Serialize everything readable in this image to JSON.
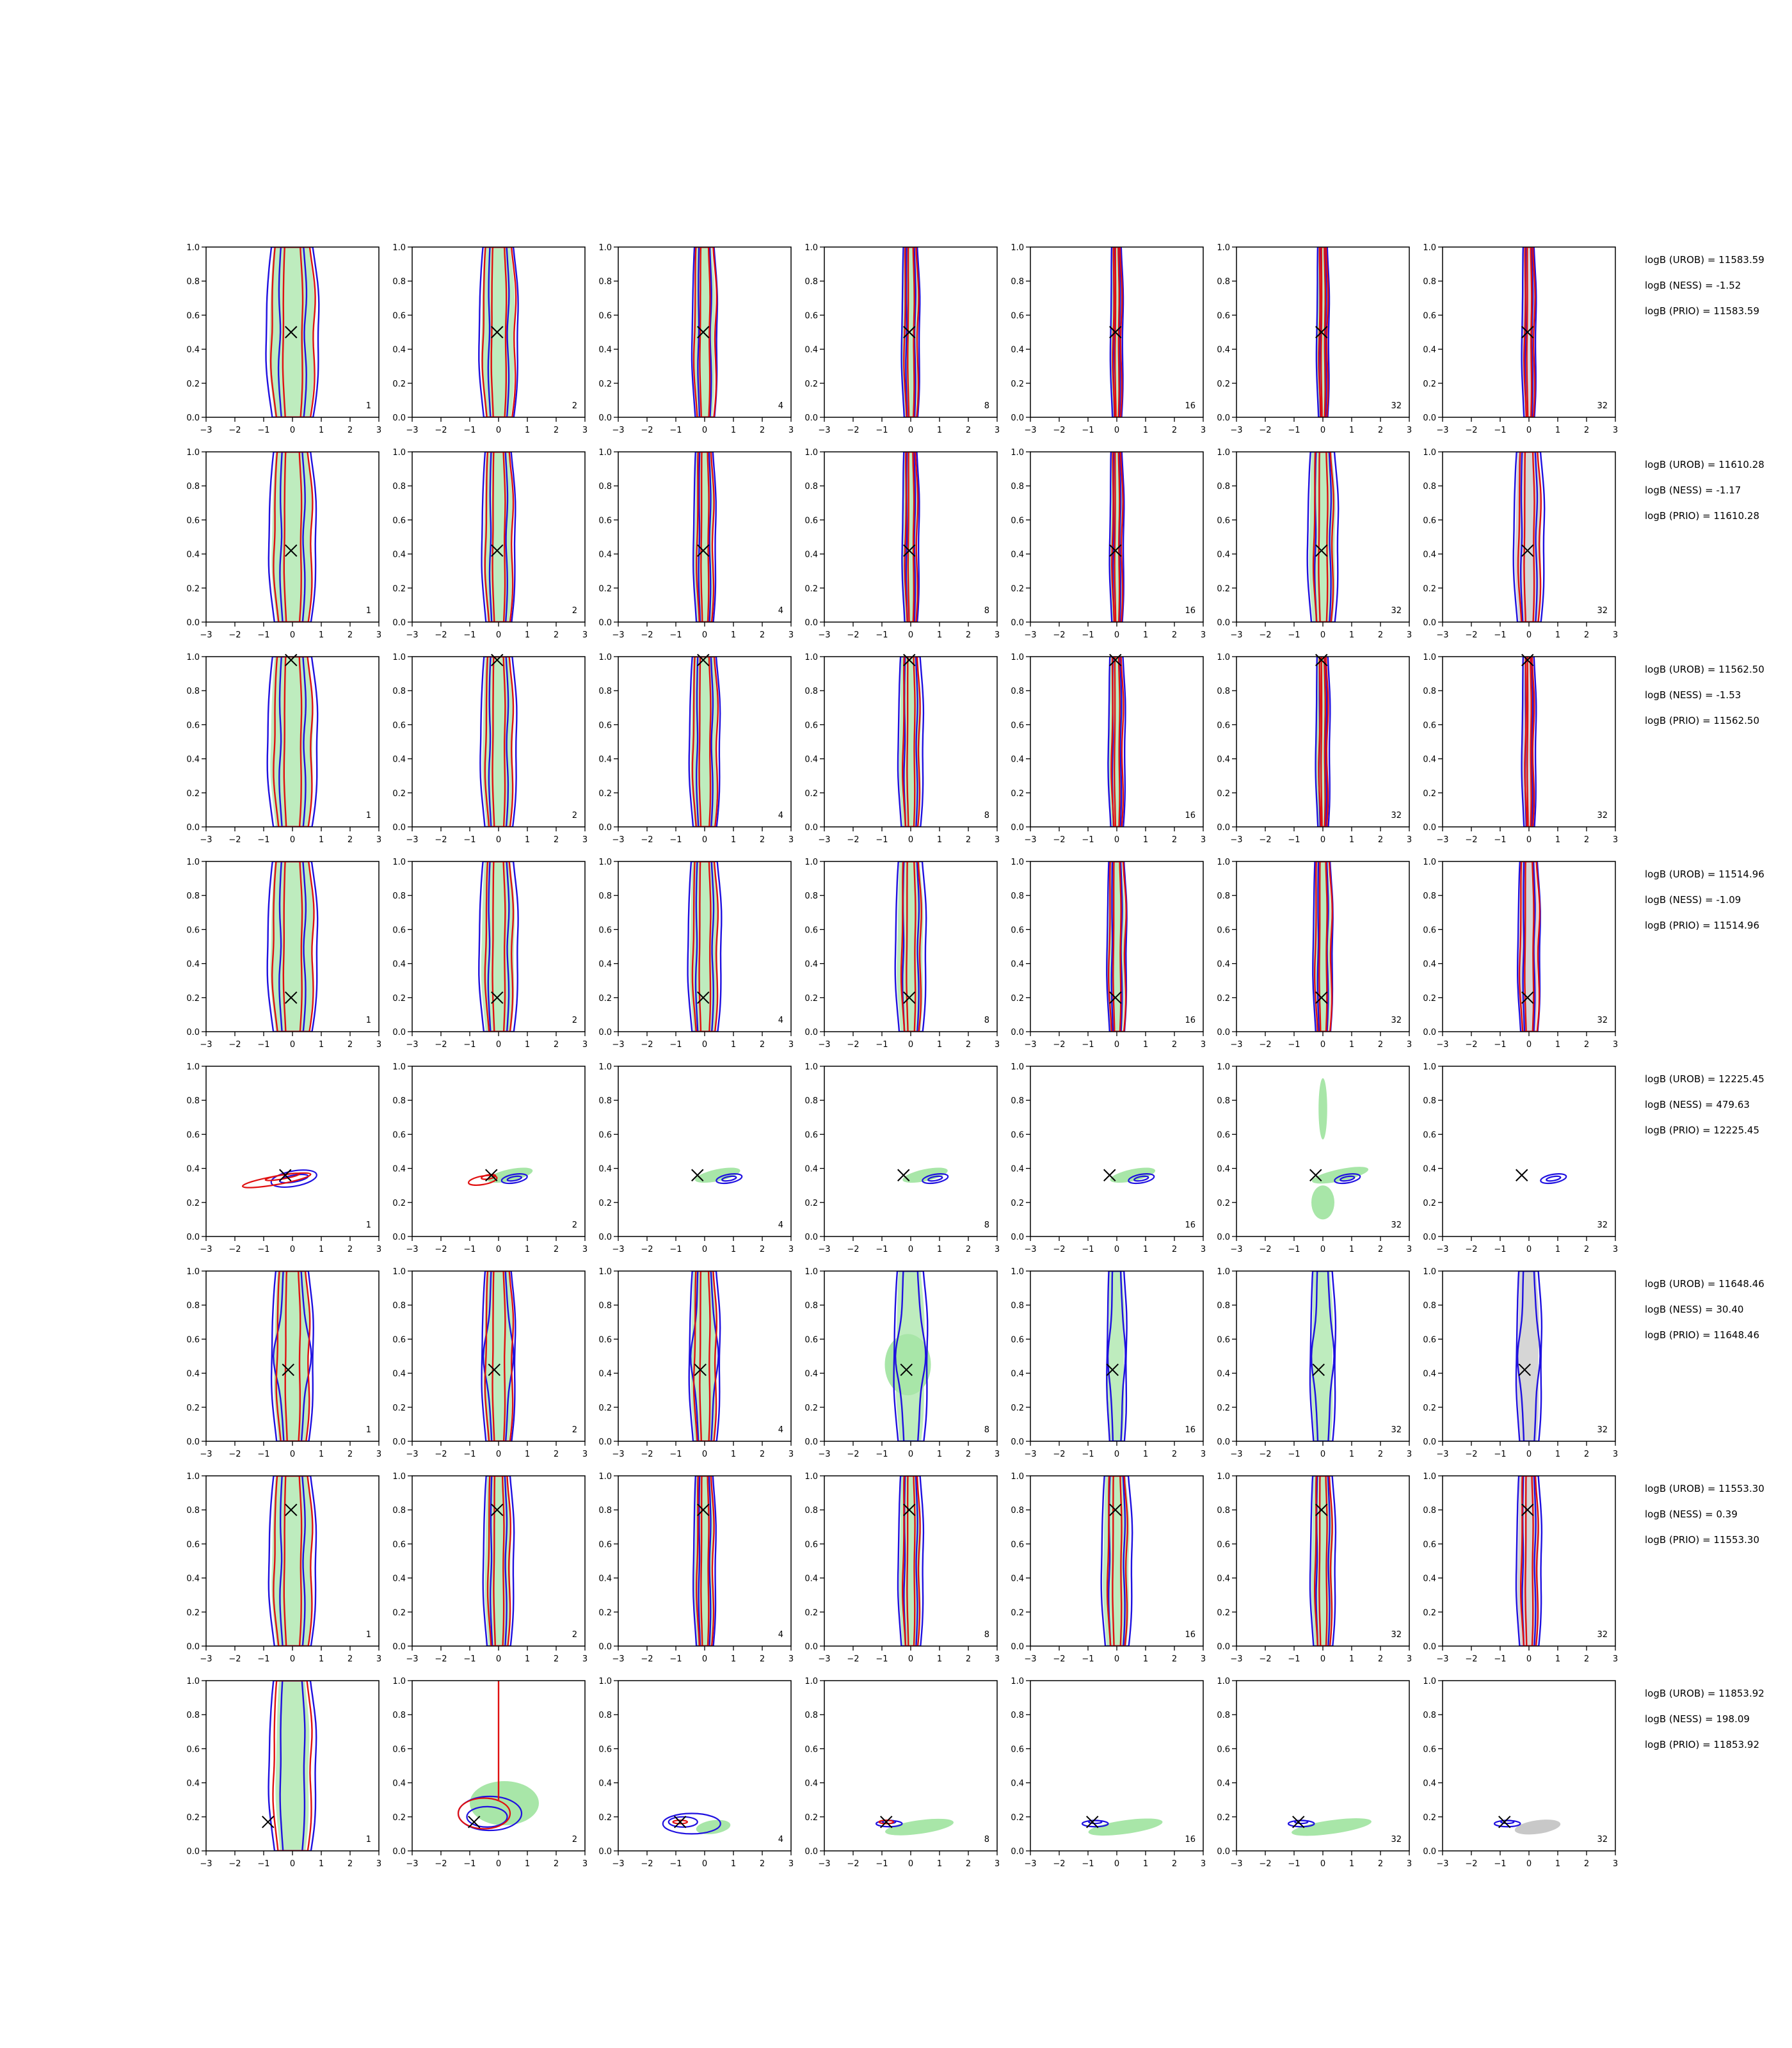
{
  "chart_data": {
    "type": "contour-grid",
    "rows": 8,
    "cols": 7,
    "xlim": [
      -3,
      3
    ],
    "ylim": [
      0,
      1
    ],
    "xticks": [
      "−3",
      "−2",
      "−1",
      "0",
      "1",
      "2",
      "3"
    ],
    "yticks": [
      "0.0",
      "0.2",
      "0.4",
      "0.6",
      "0.8",
      "1.0"
    ],
    "column_labels": [
      "1",
      "2",
      "4",
      "8",
      "16",
      "32",
      "32"
    ],
    "colors": {
      "blue": "#1f10e0",
      "red": "#e01010",
      "green_fill": "#a8e6a8",
      "grey_fill": "#c8c8c8"
    },
    "rows_data": [
      {
        "truth": [
          -0.05,
          0.5
        ],
        "kind": "narrow",
        "blue_w": [
          0.95,
          0.7,
          0.45,
          0.32,
          0.22,
          0.22,
          0.25
        ],
        "red_w": [
          0.8,
          0.6,
          0.4,
          0.25,
          0.15,
          0.15,
          0.18
        ],
        "ev": {
          "urob": "logB (UROB) = 11583.59",
          "ness": "logB (NESS) = -1.52",
          "prio": "logB (PRIO) = 11583.59"
        }
      },
      {
        "truth": [
          -0.05,
          0.42
        ],
        "kind": "narrow",
        "blue_w": [
          0.85,
          0.6,
          0.4,
          0.3,
          0.25,
          0.55,
          0.55
        ],
        "red_w": [
          0.7,
          0.5,
          0.3,
          0.22,
          0.18,
          0.35,
          0.4
        ],
        "ev": {
          "urob": "logB (UROB) = 11610.28",
          "ness": "logB (NESS) = -1.17",
          "prio": "logB (PRIO) = 11610.28"
        }
      },
      {
        "truth": [
          -0.05,
          0.98
        ],
        "kind": "narrow",
        "blue_w": [
          0.9,
          0.65,
          0.55,
          0.45,
          0.3,
          0.25,
          0.25
        ],
        "red_w": [
          0.7,
          0.5,
          0.45,
          0.3,
          0.2,
          0.15,
          0.15
        ],
        "ev": {
          "urob": "logB (UROB) = 11562.50",
          "ness": "logB (NESS) = -1.53",
          "prio": "logB (PRIO) = 11562.50"
        }
      },
      {
        "truth": [
          -0.05,
          0.2
        ],
        "kind": "narrow",
        "blue_w": [
          0.9,
          0.7,
          0.6,
          0.55,
          0.35,
          0.35,
          0.4
        ],
        "red_w": [
          0.75,
          0.5,
          0.45,
          0.35,
          0.3,
          0.3,
          0.35
        ],
        "ev": {
          "urob": "logB (UROB) = 11514.96",
          "ness": "logB (NESS) = -1.09",
          "prio": "logB (PRIO) = 11514.96"
        }
      },
      {
        "truth": [
          -0.25,
          0.36
        ],
        "kind": "tilted",
        "ev": {
          "urob": "logB (UROB) = 12225.45",
          "ness": "logB (NESS) = 479.63",
          "prio": "logB (PRIO) = 12225.45"
        }
      },
      {
        "truth": [
          -0.15,
          0.42
        ],
        "kind": "diamond",
        "blue_w": [
          0.75,
          0.6,
          0.55,
          0.6,
          0.35,
          0.45,
          0.45
        ],
        "red_w": [
          0.6,
          0.5,
          0.4,
          0,
          0,
          0,
          0
        ],
        "ev": {
          "urob": "logB (UROB) = 11648.46",
          "ness": "logB (NESS) = 30.40",
          "prio": "logB (PRIO) = 11648.46"
        }
      },
      {
        "truth": [
          -0.05,
          0.8
        ],
        "kind": "narrow",
        "blue_w": [
          0.85,
          0.55,
          0.4,
          0.45,
          0.55,
          0.45,
          0.45
        ],
        "red_w": [
          0.7,
          0.4,
          0.3,
          0.3,
          0.35,
          0.3,
          0.3
        ],
        "ev": {
          "urob": "logB (UROB) = 11553.30",
          "ness": "logB (NESS) = 0.39",
          "prio": "logB (PRIO) = 11553.30"
        }
      },
      {
        "truth": [
          -0.85,
          0.17
        ],
        "kind": "low",
        "ev": {
          "urob": "logB (UROB) = 11853.92",
          "ness": "logB (NESS) = 198.09",
          "prio": "logB (PRIO) = 11853.92"
        }
      }
    ]
  }
}
